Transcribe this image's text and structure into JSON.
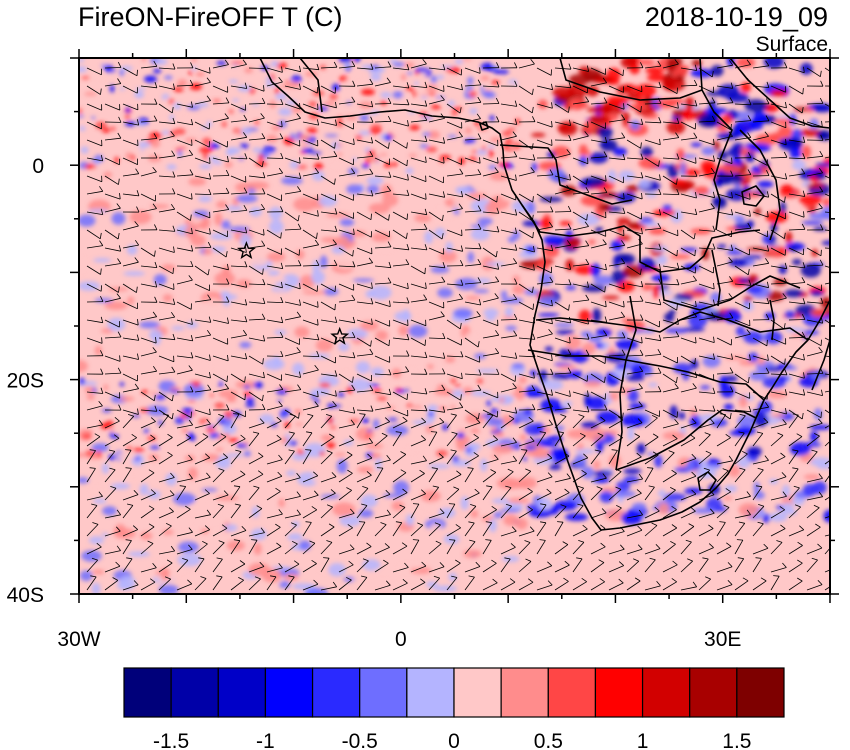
{
  "title": "FireON-FireOFF T (C)",
  "datetime": "2018-10-19_09",
  "level": "Surface",
  "map": {
    "lon_range": [
      -30,
      40
    ],
    "lat_range": [
      -40,
      10
    ],
    "lon_tick_labels": [
      {
        "lon": -30,
        "label": "30W"
      },
      {
        "lon": 0,
        "label": "0"
      },
      {
        "lon": 30,
        "label": "30E"
      }
    ],
    "lat_tick_labels": [
      {
        "lat": 0,
        "label": "0"
      },
      {
        "lat": -20,
        "label": "20S"
      },
      {
        "lat": -40,
        "label": "40S"
      }
    ],
    "markers": [
      {
        "type": "star",
        "lon": -14.4,
        "lat": -8.0
      },
      {
        "type": "star",
        "lon": -5.7,
        "lat": -16.0
      }
    ],
    "field": "temperature difference, FireON minus FireOFF",
    "overlay": "wind barbs",
    "colors": {
      "land_border": "#000000",
      "wind_barb": "#000000"
    }
  },
  "colorbar": {
    "colors": [
      "#00007a",
      "#0000a8",
      "#0000c8",
      "#0000ff",
      "#2a2aff",
      "#6e6eff",
      "#b4b4ff",
      "#ffc8c8",
      "#ff8c8c",
      "#ff4646",
      "#ff0000",
      "#d20000",
      "#a80000",
      "#7e0000"
    ],
    "tick_labels": [
      {
        "value": -1.5,
        "label": "-1.5"
      },
      {
        "value": -1,
        "label": "-1"
      },
      {
        "value": -0.5,
        "label": "-0.5"
      },
      {
        "value": 0,
        "label": "0"
      },
      {
        "value": 0.5,
        "label": "0.5"
      },
      {
        "value": 1,
        "label": "1"
      },
      {
        "value": 1.5,
        "label": "1.5"
      }
    ]
  }
}
